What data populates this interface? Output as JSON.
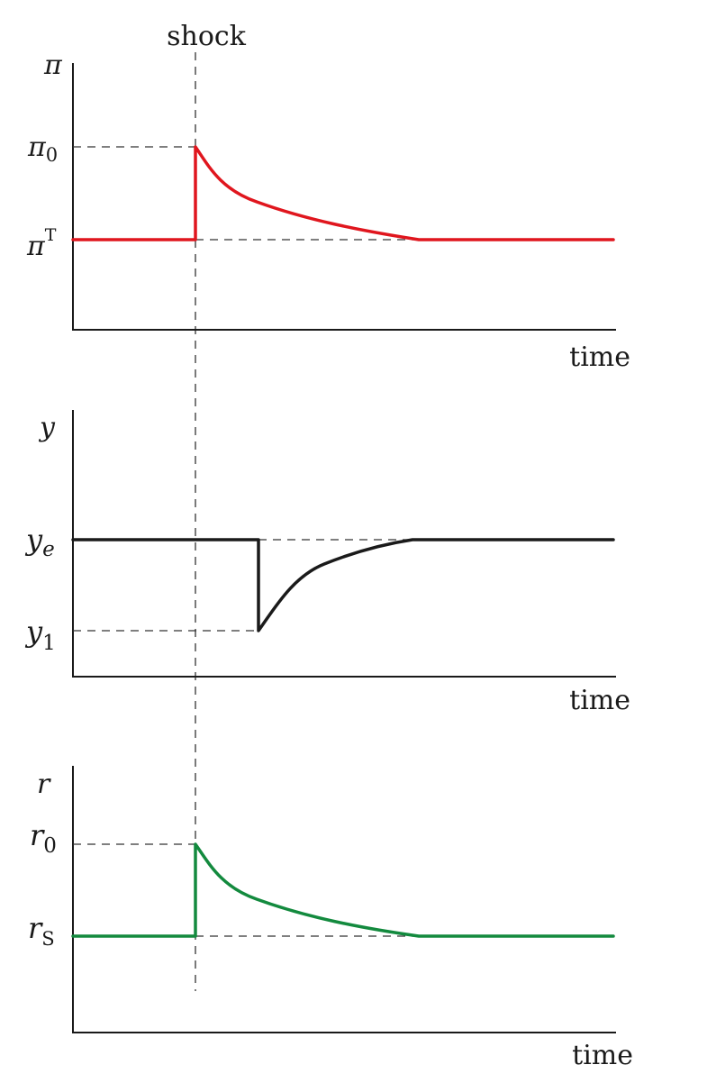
{
  "shock_label": "shock",
  "colors": {
    "inflation": "#e0161e",
    "output": "#1a1a1a",
    "interest": "#138a3e"
  },
  "panels": {
    "inflation": {
      "axis_symbol": "π",
      "high_symbol": "π",
      "high_sub": "0",
      "base_symbol": "π",
      "base_sup": "T",
      "xlabel": "time"
    },
    "output": {
      "axis_symbol": "y",
      "base_symbol": "y",
      "base_sub": "e",
      "low_symbol": "y",
      "low_sub": "1",
      "xlabel": "time"
    },
    "interest": {
      "axis_symbol": "r",
      "high_symbol": "r",
      "high_sub": "0",
      "base_symbol": "r",
      "base_sub": "S",
      "xlabel": "time"
    }
  }
}
